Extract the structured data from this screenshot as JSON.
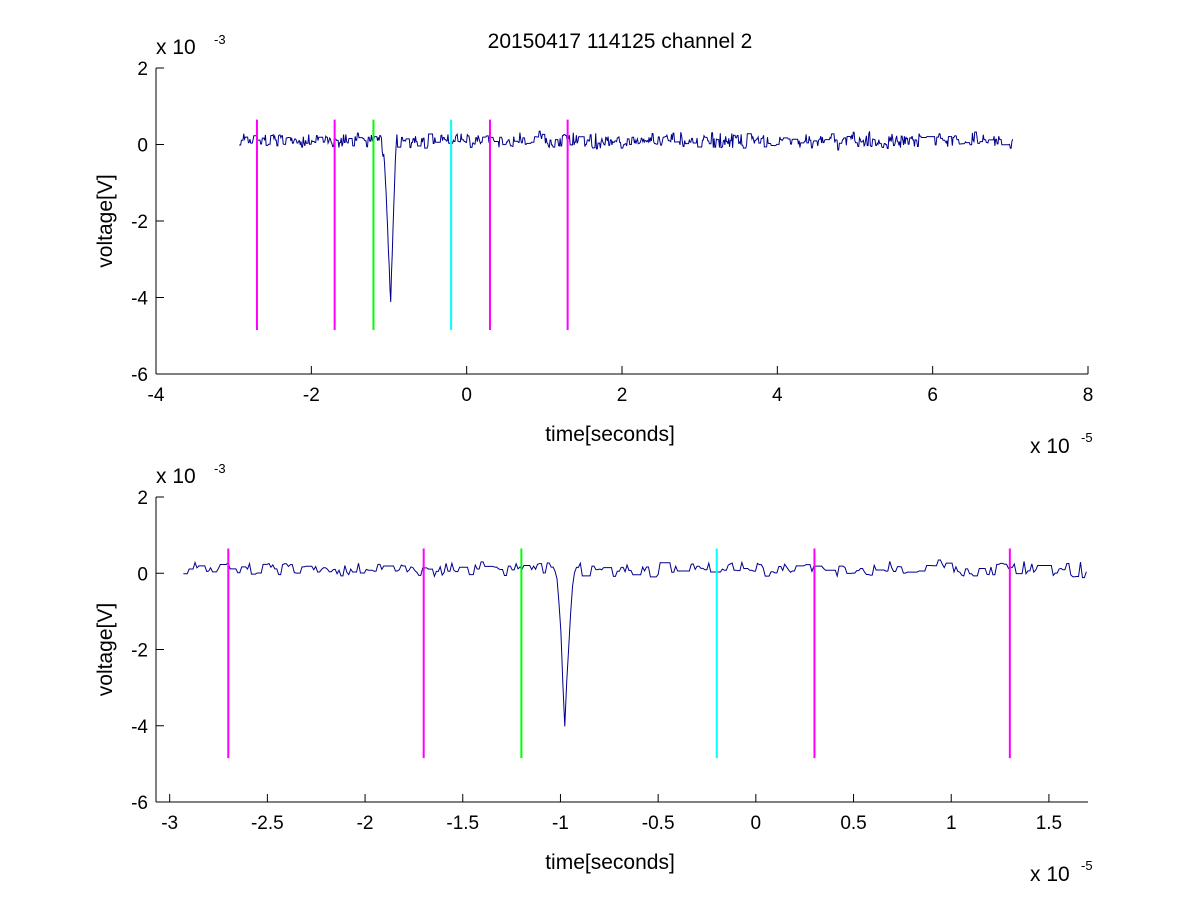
{
  "figure": {
    "title": "20150417 114125 channel 2"
  },
  "chart_data": [
    {
      "type": "line",
      "title": "20150417 114125 channel 2",
      "xlabel": "time[seconds]",
      "ylabel": "voltage[V]",
      "x_multiplier": "x 10",
      "x_exponent": "-5",
      "y_multiplier": "x 10",
      "y_exponent": "-3",
      "xlim": [
        -4,
        8
      ],
      "ylim": [
        -6,
        2
      ],
      "xticks": [
        -4,
        -2,
        0,
        2,
        4,
        6,
        8
      ],
      "xtick_labels": [
        "-4",
        "-2",
        "0",
        "2",
        "4",
        "6",
        "8"
      ],
      "yticks": [
        -6,
        -4,
        -2,
        0,
        2
      ],
      "ytick_labels": [
        "-6",
        "-4",
        "-2",
        "0",
        "2"
      ],
      "grid": false,
      "signal": {
        "color": "#00008b",
        "x_range": [
          -2.93,
          7.03
        ],
        "baseline": 0.1,
        "noise_amplitude": 0.17,
        "pulse": {
          "start": -1.12,
          "dip_at": -0.98,
          "end": -0.9,
          "min": -4.4
        }
      },
      "markers": [
        {
          "x": -2.7,
          "color": "#ff00ff",
          "y_range": [
            -4.85,
            0.65
          ]
        },
        {
          "x": -1.7,
          "color": "#ff00ff",
          "y_range": [
            -4.85,
            0.65
          ]
        },
        {
          "x": -1.2,
          "color": "#00ff00",
          "y_range": [
            -4.85,
            0.65
          ]
        },
        {
          "x": -0.2,
          "color": "#00ffff",
          "y_range": [
            -4.85,
            0.65
          ]
        },
        {
          "x": 0.3,
          "color": "#ff00ff",
          "y_range": [
            -4.85,
            0.65
          ]
        },
        {
          "x": 1.3,
          "color": "#ff00ff",
          "y_range": [
            -4.85,
            0.65
          ]
        }
      ]
    },
    {
      "type": "line",
      "title": "",
      "xlabel": "time[seconds]",
      "ylabel": "voltage[V]",
      "x_multiplier": "x 10",
      "x_exponent": "-5",
      "y_multiplier": "x 10",
      "y_exponent": "-3",
      "xlim": [
        -3.07,
        1.7
      ],
      "ylim": [
        -6,
        2
      ],
      "xticks": [
        -3,
        -2.5,
        -2,
        -1.5,
        -1,
        -0.5,
        0,
        0.5,
        1,
        1.5
      ],
      "xtick_labels": [
        "-3",
        "-2.5",
        "-2",
        "-1.5",
        "-1",
        "-0.5",
        "0",
        "0.5",
        "1",
        "1.5"
      ],
      "yticks": [
        -6,
        -4,
        -2,
        0,
        2
      ],
      "ytick_labels": [
        "-6",
        "-4",
        "-2",
        "0",
        "2"
      ],
      "grid": false,
      "signal": {
        "color": "#00008b",
        "x_range": [
          -2.93,
          1.7
        ],
        "baseline": 0.1,
        "noise_amplitude": 0.17,
        "pulse": {
          "start": -1.03,
          "dip_at": -0.98,
          "end": -0.93,
          "min": -4.4
        }
      },
      "markers": [
        {
          "x": -2.7,
          "color": "#ff00ff",
          "y_range": [
            -4.85,
            0.65
          ]
        },
        {
          "x": -1.7,
          "color": "#ff00ff",
          "y_range": [
            -4.85,
            0.65
          ]
        },
        {
          "x": -1.2,
          "color": "#00ff00",
          "y_range": [
            -4.85,
            0.65
          ]
        },
        {
          "x": -0.2,
          "color": "#00ffff",
          "y_range": [
            -4.85,
            0.65
          ]
        },
        {
          "x": 0.3,
          "color": "#ff00ff",
          "y_range": [
            -4.85,
            0.65
          ]
        },
        {
          "x": 1.3,
          "color": "#ff00ff",
          "y_range": [
            -4.85,
            0.65
          ]
        }
      ]
    }
  ]
}
